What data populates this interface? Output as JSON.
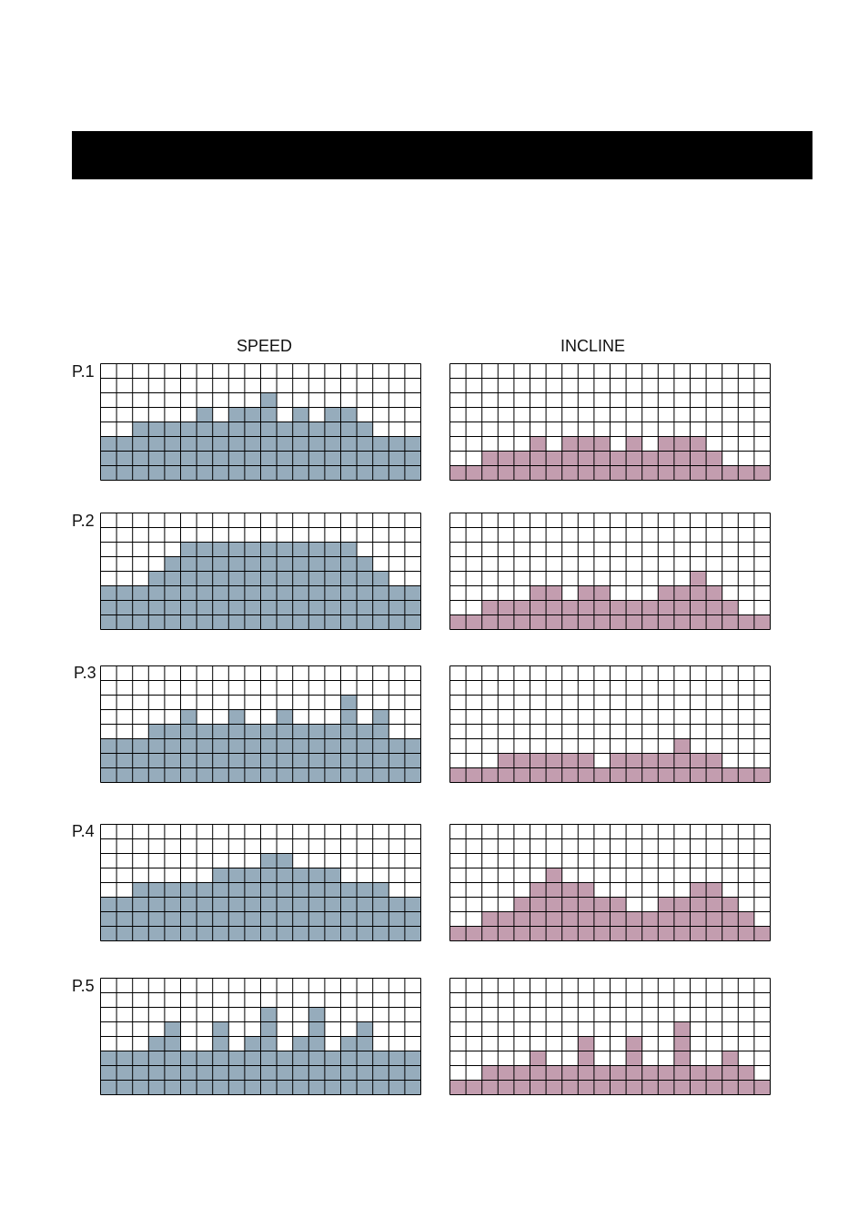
{
  "headers": {
    "speed": "SPEED",
    "incline": "INCLINE"
  },
  "colors": {
    "speed": "#96acbc",
    "incline": "#c39daf",
    "grid": "#000000",
    "bar": "#000000"
  },
  "chart_data": [
    {
      "type": "heatmap",
      "program": "P.1",
      "metric": "SPEED",
      "columns": 20,
      "rows": 8,
      "values": [
        3,
        3,
        4,
        4,
        4,
        4,
        5,
        4,
        5,
        5,
        6,
        4,
        5,
        4,
        5,
        5,
        4,
        3,
        3,
        3
      ]
    },
    {
      "type": "heatmap",
      "program": "P.1",
      "metric": "INCLINE",
      "columns": 20,
      "rows": 8,
      "values": [
        1,
        1,
        2,
        2,
        2,
        3,
        2,
        3,
        3,
        3,
        2,
        3,
        2,
        3,
        3,
        3,
        2,
        1,
        1,
        1
      ]
    },
    {
      "type": "heatmap",
      "program": "P.2",
      "metric": "SPEED",
      "columns": 20,
      "rows": 8,
      "values": [
        3,
        3,
        3,
        4,
        5,
        6,
        6,
        6,
        6,
        6,
        6,
        6,
        6,
        6,
        6,
        6,
        5,
        4,
        3,
        3
      ]
    },
    {
      "type": "heatmap",
      "program": "P.2",
      "metric": "INCLINE",
      "columns": 20,
      "rows": 8,
      "values": [
        1,
        1,
        2,
        2,
        2,
        3,
        3,
        2,
        3,
        3,
        2,
        2,
        2,
        3,
        3,
        4,
        3,
        2,
        1,
        1
      ]
    },
    {
      "type": "heatmap",
      "program": "P.3",
      "metric": "SPEED",
      "columns": 20,
      "rows": 8,
      "values": [
        3,
        3,
        3,
        4,
        4,
        5,
        4,
        4,
        5,
        4,
        4,
        5,
        4,
        4,
        4,
        6,
        4,
        5,
        3,
        3
      ]
    },
    {
      "type": "heatmap",
      "program": "P.3",
      "metric": "INCLINE",
      "columns": 20,
      "rows": 8,
      "values": [
        1,
        1,
        1,
        2,
        2,
        2,
        2,
        2,
        2,
        1,
        2,
        2,
        2,
        2,
        3,
        2,
        2,
        1,
        1,
        1
      ]
    },
    {
      "type": "heatmap",
      "program": "P.4",
      "metric": "SPEED",
      "columns": 20,
      "rows": 8,
      "values": [
        3,
        3,
        4,
        4,
        4,
        4,
        4,
        5,
        5,
        5,
        6,
        6,
        5,
        5,
        5,
        4,
        4,
        4,
        3,
        3
      ]
    },
    {
      "type": "heatmap",
      "program": "P.4",
      "metric": "INCLINE",
      "columns": 20,
      "rows": 8,
      "values": [
        1,
        1,
        2,
        2,
        3,
        4,
        5,
        4,
        4,
        3,
        3,
        2,
        2,
        3,
        3,
        4,
        4,
        3,
        2,
        1
      ]
    },
    {
      "type": "heatmap",
      "program": "P.5",
      "metric": "SPEED",
      "columns": 20,
      "rows": 8,
      "values": [
        3,
        3,
        3,
        4,
        5,
        3,
        3,
        5,
        3,
        4,
        6,
        3,
        4,
        6,
        3,
        4,
        5,
        3,
        3,
        3
      ]
    },
    {
      "type": "heatmap",
      "program": "P.5",
      "metric": "INCLINE",
      "columns": 20,
      "rows": 8,
      "values": [
        1,
        1,
        2,
        2,
        2,
        3,
        2,
        2,
        4,
        2,
        2,
        4,
        2,
        2,
        5,
        2,
        2,
        3,
        2,
        1
      ]
    }
  ]
}
